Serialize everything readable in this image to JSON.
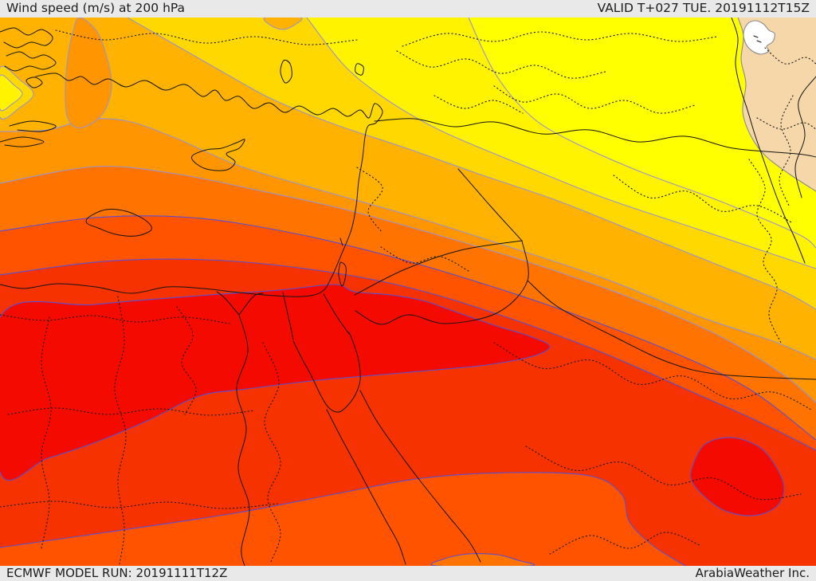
{
  "header": {
    "title": "Wind speed (m/s) at 200 hPa",
    "valid": "VALID T+027 TUE. 20191112T15Z"
  },
  "footer": {
    "model_run": "ECMWF MODEL RUN: 20191111T12Z",
    "brand": "ArabiaWeather Inc."
  },
  "map": {
    "parameter": "Wind speed (m/s)",
    "level": "200 hPa",
    "model": "ECMWF",
    "bar_background": "#e9e9e9",
    "text_color": "#1c1c1c",
    "palette": {
      "white": "#ffffff",
      "tan": "#f6d7a9",
      "yellow": "#ffff00",
      "yellow2": "#fff300",
      "gold": "#ffd800",
      "amber": "#ffb300",
      "orange": "#ff9500",
      "dark_orange": "#ff7400",
      "orange_red": "#ff5300",
      "red": "#f63200",
      "bright_red": "#f50a00",
      "contour_warm": "#9b93cf",
      "contour_hot": "#5a4fd2",
      "contour_gray": "#8a8a8a",
      "coastline": "#141414",
      "admin_dotted": "#1a1a1a"
    },
    "bands_low_to_high": [
      "white",
      "tan",
      "yellow",
      "yellow2",
      "gold",
      "amber",
      "orange",
      "dark_orange",
      "orange_red",
      "red",
      "bright_red"
    ]
  }
}
